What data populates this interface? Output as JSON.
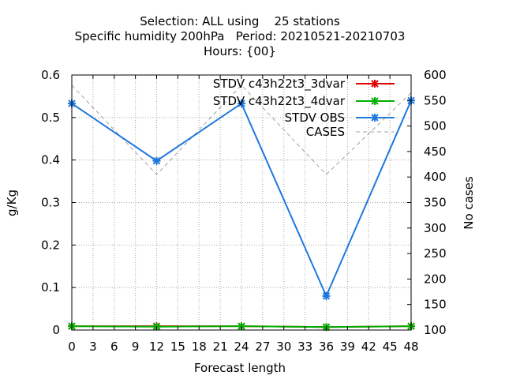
{
  "chart_data": {
    "type": "line",
    "title_lines": [
      "Selection: ALL using    25 stations",
      "Specific humidity 200hPa   Period: 20210521-20210703",
      "Hours: {00}"
    ],
    "xlabel": "Forecast length",
    "ylabel": "g/Kg",
    "y2label": "No cases",
    "xlim": [
      0,
      48
    ],
    "ylim": [
      0,
      0.6
    ],
    "y2lim": [
      100,
      600
    ],
    "x_ticks": [
      0,
      3,
      6,
      9,
      12,
      15,
      18,
      21,
      24,
      27,
      30,
      33,
      36,
      39,
      42,
      45,
      48
    ],
    "y_ticks": [
      "0",
      "0.1",
      "0.2",
      "0.3",
      "0.4",
      "0.5",
      "0.6"
    ],
    "y2_ticks": [
      "100",
      "150",
      "200",
      "250",
      "300",
      "350",
      "400",
      "450",
      "500",
      "550",
      "600"
    ],
    "grid": true,
    "legend_position": "top-right",
    "series": [
      {
        "name": "STDV c43h22t3_3dvar",
        "axis": "y",
        "color": "#e00000",
        "style": "solid",
        "markers": true,
        "x": [
          0,
          12,
          24,
          36,
          48
        ],
        "values": [
          0.009,
          0.009,
          0.009,
          0.007,
          0.009
        ]
      },
      {
        "name": "STDV c43h22t3_4dvar",
        "axis": "y",
        "color": "#00b000",
        "style": "solid",
        "markers": true,
        "x": [
          0,
          12,
          24,
          36,
          48
        ],
        "values": [
          0.009,
          0.008,
          0.009,
          0.007,
          0.009
        ]
      },
      {
        "name": "STDV OBS",
        "axis": "y",
        "color": "#1e78dc",
        "style": "solid",
        "markers": true,
        "x": [
          0,
          12,
          24,
          36,
          48
        ],
        "values": [
          0.533,
          0.398,
          0.533,
          0.08,
          0.54
        ]
      },
      {
        "name": "CASES",
        "axis": "y2",
        "color": "#a0a0a0",
        "style": "dashed",
        "markers": false,
        "x": [
          0,
          12,
          24,
          36,
          48
        ],
        "values": [
          580,
          405,
          580,
          405,
          565
        ]
      }
    ]
  }
}
